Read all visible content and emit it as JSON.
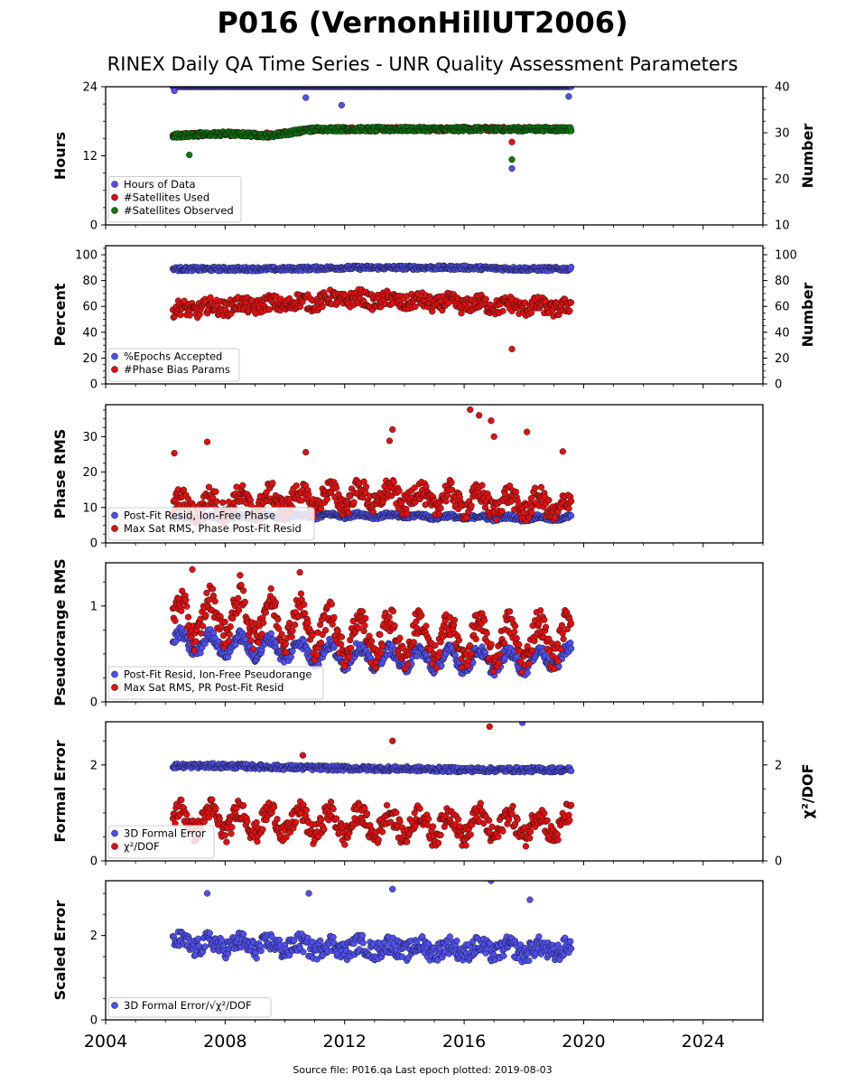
{
  "figure": {
    "title": "P016 (VernonHillUT2006)",
    "subtitle": "RINEX Daily QA Time Series - UNR Quality Assessment Parameters",
    "footer": "Source file: P016.qa Last epoch plotted: 2019-08-03",
    "x_tick_labels": [
      "2004",
      "2008",
      "2012",
      "2016",
      "2020",
      "2024"
    ]
  },
  "chart_data": [
    {
      "type": "scatter",
      "ylabel": "Hours",
      "ylabel_right": "Number",
      "xlim": [
        2004,
        2026
      ],
      "ylim": [
        0,
        24
      ],
      "ylim_right": [
        10,
        40
      ],
      "yticks": [
        "0",
        "12",
        "24"
      ],
      "yticks_right": [
        "10",
        "20",
        "30",
        "40"
      ],
      "grid": false,
      "legend_position": "lower-left",
      "series": [
        {
          "name": "Hours of Data",
          "color": "#4f4ff0",
          "axis": "left",
          "x": [
            2006.25,
            2008.0,
            2010.0,
            2012.0,
            2014.0,
            2016.0,
            2018.0,
            2019.58
          ],
          "y": [
            24,
            24,
            24,
            24,
            24,
            24,
            24,
            24
          ],
          "outliers": [
            [
              2006.3,
              23.3
            ],
            [
              2010.7,
              22.1
            ],
            [
              2011.9,
              20.8
            ],
            [
              2017.6,
              9.8
            ],
            [
              2019.5,
              22.3
            ]
          ]
        },
        {
          "name": "#Satellites Used",
          "color": "#e01010",
          "axis": "right",
          "x": [
            2006.25,
            2008.0,
            2009.5,
            2011.0,
            2013.0,
            2015.0,
            2017.0,
            2019.58
          ],
          "y": [
            29.4,
            29.8,
            29.4,
            30.8,
            30.8,
            30.8,
            30.8,
            30.8
          ],
          "outliers": [
            [
              2009.4,
              30.0
            ],
            [
              2017.6,
              28.0
            ]
          ]
        },
        {
          "name": "#Satellites Observed",
          "color": "#0e7a0e",
          "axis": "right",
          "x": [
            2006.25,
            2008.0,
            2009.5,
            2011.0,
            2013.0,
            2015.0,
            2017.0,
            2019.58
          ],
          "y": [
            29.4,
            29.8,
            29.4,
            30.8,
            30.8,
            30.8,
            30.8,
            30.8
          ],
          "outliers": [
            [
              2017.6,
              24.2
            ],
            [
              2006.8,
              25.2
            ]
          ]
        }
      ]
    },
    {
      "type": "scatter",
      "ylabel": "Percent",
      "ylabel_right": "Number",
      "xlim": [
        2004,
        2026
      ],
      "ylim": [
        0,
        107
      ],
      "ylim_right": [
        0,
        107
      ],
      "yticks": [
        "0",
        "20",
        "40",
        "60",
        "80",
        "100"
      ],
      "yticks_right": [
        "0",
        "20",
        "40",
        "60",
        "80",
        "100"
      ],
      "grid": false,
      "legend_position": "lower-left",
      "series": [
        {
          "name": "%Epochs Accepted",
          "color": "#4f4ff0",
          "axis": "left",
          "x": [
            2006.25,
            2008.0,
            2010.0,
            2012.0,
            2014.0,
            2016.0,
            2018.0,
            2019.58
          ],
          "y": [
            89,
            89,
            89,
            90,
            90,
            90,
            89,
            89
          ]
        },
        {
          "name": "#Phase Bias Params",
          "color": "#e01010",
          "axis": "right",
          "x": [
            2006.25,
            2008.0,
            2010.0,
            2012.0,
            2014.0,
            2016.0,
            2018.0,
            2019.58
          ],
          "y": [
            57,
            60,
            62,
            66,
            64,
            62,
            60,
            59
          ],
          "outliers": [
            [
              2017.6,
              27
            ]
          ]
        }
      ]
    },
    {
      "type": "scatter",
      "ylabel": "Phase RMS",
      "xlim": [
        2004,
        2026
      ],
      "ylim": [
        0,
        39
      ],
      "yticks": [
        "0",
        "10",
        "20",
        "30"
      ],
      "grid": false,
      "legend_position": "lower-left",
      "series": [
        {
          "name": "Post-Fit Resid, Ion-Free Phase",
          "color": "#4f4ff0",
          "x": [
            2006.25,
            2008.0,
            2010.0,
            2012.0,
            2014.0,
            2016.0,
            2018.0,
            2019.58
          ],
          "y": [
            7.0,
            7.2,
            7.4,
            7.8,
            7.6,
            7.2,
            7.0,
            7.0
          ]
        },
        {
          "name": "Max Sat RMS, Phase Post-Fit Resid",
          "color": "#e01010",
          "x": [
            2006.25,
            2008.0,
            2010.0,
            2012.0,
            2014.0,
            2016.0,
            2018.0,
            2019.58
          ],
          "y": [
            10,
            11,
            12,
            13,
            13,
            12,
            11,
            10
          ],
          "outliers": [
            [
              2006.3,
              25.3
            ],
            [
              2007.4,
              28.5
            ],
            [
              2010.7,
              25.6
            ],
            [
              2013.5,
              28.8
            ],
            [
              2013.6,
              32.0
            ],
            [
              2016.2,
              37.6
            ],
            [
              2016.5,
              36.0
            ],
            [
              2016.9,
              34.5
            ],
            [
              2017.0,
              30.0
            ],
            [
              2018.1,
              31.3
            ],
            [
              2019.3,
              25.8
            ]
          ]
        }
      ]
    },
    {
      "type": "scatter",
      "ylabel": "Pseudorange RMS",
      "xlim": [
        2004,
        2026
      ],
      "ylim": [
        0,
        1.45
      ],
      "yticks": [
        "0",
        "1"
      ],
      "grid": false,
      "legend_position": "lower-left",
      "series": [
        {
          "name": "Post-Fit Resid, Ion-Free Pseudorange",
          "color": "#4f4ff0",
          "x": [
            2006.25,
            2008.0,
            2010.0,
            2012.0,
            2014.0,
            2016.0,
            2018.0,
            2019.58
          ],
          "y": [
            0.62,
            0.6,
            0.55,
            0.48,
            0.45,
            0.44,
            0.43,
            0.48
          ]
        },
        {
          "name": "Max Sat RMS, PR Post-Fit Resid",
          "color": "#e01010",
          "x": [
            2006.25,
            2008.0,
            2010.0,
            2012.0,
            2014.0,
            2016.0,
            2018.0,
            2019.58
          ],
          "y": [
            0.85,
            0.9,
            0.85,
            0.7,
            0.66,
            0.64,
            0.62,
            0.7
          ],
          "outliers": [
            [
              2006.9,
              1.38
            ],
            [
              2010.5,
              1.35
            ],
            [
              2008.5,
              1.32
            ]
          ]
        }
      ]
    },
    {
      "type": "scatter",
      "ylabel": "Formal Error",
      "ylabel_right": "χ²/DOF",
      "xlim": [
        2004,
        2026
      ],
      "ylim": [
        0,
        2.9
      ],
      "ylim_right": [
        0,
        2.9
      ],
      "yticks": [
        "0",
        "2"
      ],
      "yticks_right": [
        "0",
        "2"
      ],
      "grid": false,
      "legend_position": "lower-left",
      "series": [
        {
          "name": "3D Formal Error",
          "color": "#4f4ff0",
          "axis": "left",
          "x": [
            2006.25,
            2008.0,
            2010.0,
            2012.0,
            2014.0,
            2016.0,
            2018.0,
            2019.58
          ],
          "y": [
            1.98,
            1.98,
            1.95,
            1.93,
            1.92,
            1.9,
            1.9,
            1.9
          ],
          "outliers": [
            [
              2017.95,
              2.88
            ]
          ]
        },
        {
          "name": "χ²/DOF",
          "color": "#e01010",
          "axis": "right",
          "x": [
            2006.25,
            2008.0,
            2010.0,
            2012.0,
            2014.0,
            2016.0,
            2018.0,
            2019.58
          ],
          "y": [
            0.85,
            0.85,
            0.8,
            0.78,
            0.76,
            0.75,
            0.75,
            0.75
          ],
          "outliers": [
            [
              2013.6,
              2.5
            ],
            [
              2016.85,
              2.8
            ],
            [
              2010.6,
              2.2
            ]
          ]
        }
      ]
    },
    {
      "type": "scatter",
      "ylabel": "Scaled Error",
      "xlim": [
        2004,
        2026
      ],
      "ylim": [
        0,
        3.3
      ],
      "yticks": [
        "0",
        "2"
      ],
      "grid": false,
      "legend_position": "lower-left",
      "series": [
        {
          "name": "3D Formal Error/√χ²/DOF",
          "color": "#4f4ff0",
          "x": [
            2006.25,
            2008.0,
            2010.0,
            2012.0,
            2014.0,
            2016.0,
            2018.0,
            2019.58
          ],
          "y": [
            1.8,
            1.78,
            1.75,
            1.72,
            1.7,
            1.68,
            1.66,
            1.66
          ],
          "outliers": [
            [
              2016.9,
              3.3
            ],
            [
              2013.6,
              3.1
            ],
            [
              2007.4,
              3.0
            ],
            [
              2010.8,
              3.0
            ],
            [
              2018.2,
              2.85
            ]
          ]
        }
      ]
    }
  ]
}
